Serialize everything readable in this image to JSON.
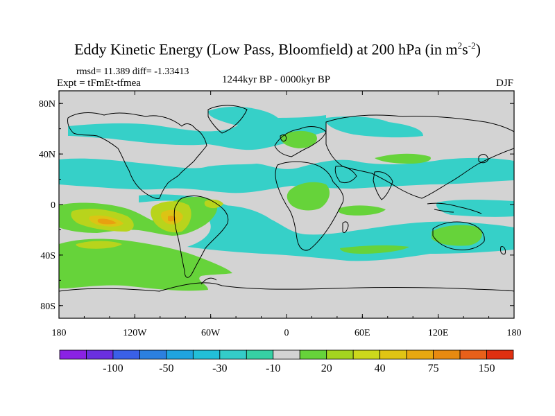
{
  "title": {
    "text": "Eddy Kinetic Energy (Low Pass, Bloomfield) at 200 hPa (in m",
    "exp1": "2",
    "mid": "s",
    "exp2": "-2",
    "end": ")"
  },
  "stats": "rmsd= 11.389  diff= -1.33413",
  "experiment": "Expt = tFmEt-tfmea",
  "period": "1244kyr BP - 0000kyr BP",
  "season": "DJF",
  "map": {
    "background_color": "#d3d3d3",
    "x_ticks": [
      {
        "label": "180",
        "lon": -180
      },
      {
        "label": "120W",
        "lon": -120
      },
      {
        "label": "60W",
        "lon": -60
      },
      {
        "label": "0",
        "lon": 0
      },
      {
        "label": "60E",
        "lon": 60
      },
      {
        "label": "120E",
        "lon": 120
      },
      {
        "label": "180",
        "lon": 180
      }
    ],
    "y_ticks": [
      {
        "label": "80N",
        "lat": 80
      },
      {
        "label": "40N",
        "lat": 40
      },
      {
        "label": "0",
        "lat": 0
      },
      {
        "label": "40S",
        "lat": -40
      },
      {
        "label": "80S",
        "lat": -80
      }
    ],
    "colors": {
      "cyan": "#36d0c8",
      "cyan_dark": "#2ec0d8",
      "green": "#66d33a",
      "yellow_green": "#b8d41c",
      "yellow": "#dcc414",
      "orange": "#e8a010",
      "coast": "#000000"
    }
  },
  "colorbar": {
    "colors": [
      "#8a22e4",
      "#6a30e0",
      "#3a60e8",
      "#2c80e0",
      "#1fa4e0",
      "#22bfd8",
      "#34ccc8",
      "#36d0a4",
      "#d3d3d3",
      "#66d33a",
      "#a4d420",
      "#ccd81c",
      "#e0c414",
      "#e8a810",
      "#e88a10",
      "#e8601a",
      "#e03010"
    ],
    "labels": [
      "-100",
      "-50",
      "-30",
      "-10",
      "20",
      "40",
      "75",
      "150"
    ]
  }
}
